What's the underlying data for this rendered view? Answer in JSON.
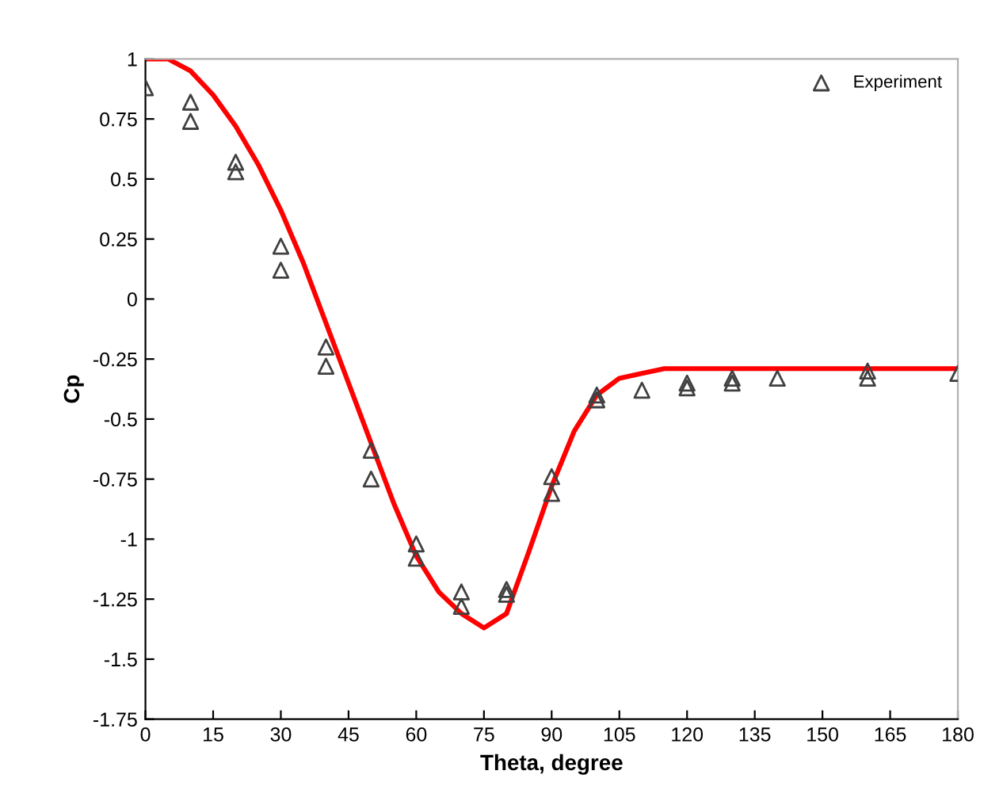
{
  "chart_data": {
    "type": "scatter",
    "xlabel": "Theta, degree",
    "ylabel": "Cp",
    "xlim": [
      0,
      180
    ],
    "ylim": [
      -1.75,
      1
    ],
    "xticks": [
      0,
      15,
      30,
      45,
      60,
      75,
      90,
      105,
      120,
      135,
      150,
      165,
      180
    ],
    "yticks": [
      {
        "value": -1.75,
        "label": "-1.75"
      },
      {
        "value": -1.5,
        "label": "-1.5"
      },
      {
        "value": -1.25,
        "label": "-1.25"
      },
      {
        "value": -1,
        "label": "-1"
      },
      {
        "value": -0.75,
        "label": "-0.75"
      },
      {
        "value": -0.5,
        "label": "-0.5"
      },
      {
        "value": -0.25,
        "label": "-0.25"
      },
      0,
      {
        "value": 0.25,
        "label": "0.25"
      },
      {
        "value": 0.5,
        "label": "0.5"
      },
      {
        "value": 0.75,
        "label": "0.75"
      },
      1
    ],
    "grid": false,
    "legend": "top right",
    "marker": "triangle",
    "series": [
      {
        "name": "Experiment",
        "color": "#404040",
        "x": [
          0,
          10,
          10,
          20,
          20,
          30,
          30,
          40,
          40,
          50,
          50,
          60,
          60,
          70,
          70,
          80,
          80,
          90,
          90,
          100,
          100,
          110,
          120,
          120,
          130,
          130,
          140,
          160,
          160,
          180
        ],
        "values": [
          0.88,
          0.82,
          0.74,
          0.57,
          0.53,
          0.22,
          0.12,
          -0.2,
          -0.28,
          -0.63,
          -0.75,
          -1.02,
          -1.08,
          -1.22,
          -1.28,
          -1.21,
          -1.23,
          -0.74,
          -0.81,
          -0.4,
          -0.42,
          -0.38,
          -0.35,
          -0.37,
          -0.33,
          -0.35,
          -0.33,
          -0.3,
          -0.33,
          -0.31
        ]
      },
      {
        "type": "line",
        "color": "#ff0000",
        "marker": "none",
        "x": [
          0,
          5,
          10,
          15,
          20,
          25,
          30,
          35,
          40,
          45,
          50,
          55,
          60,
          65,
          70,
          75,
          80,
          85,
          90,
          95,
          100,
          105,
          110,
          115,
          120,
          180
        ],
        "values": [
          1.0,
          1.0,
          0.95,
          0.85,
          0.72,
          0.56,
          0.37,
          0.15,
          -0.1,
          -0.35,
          -0.6,
          -0.85,
          -1.07,
          -1.22,
          -1.31,
          -1.37,
          -1.31,
          -1.05,
          -0.78,
          -0.55,
          -0.4,
          -0.33,
          -0.31,
          -0.29,
          -0.29,
          -0.29
        ]
      }
    ]
  }
}
